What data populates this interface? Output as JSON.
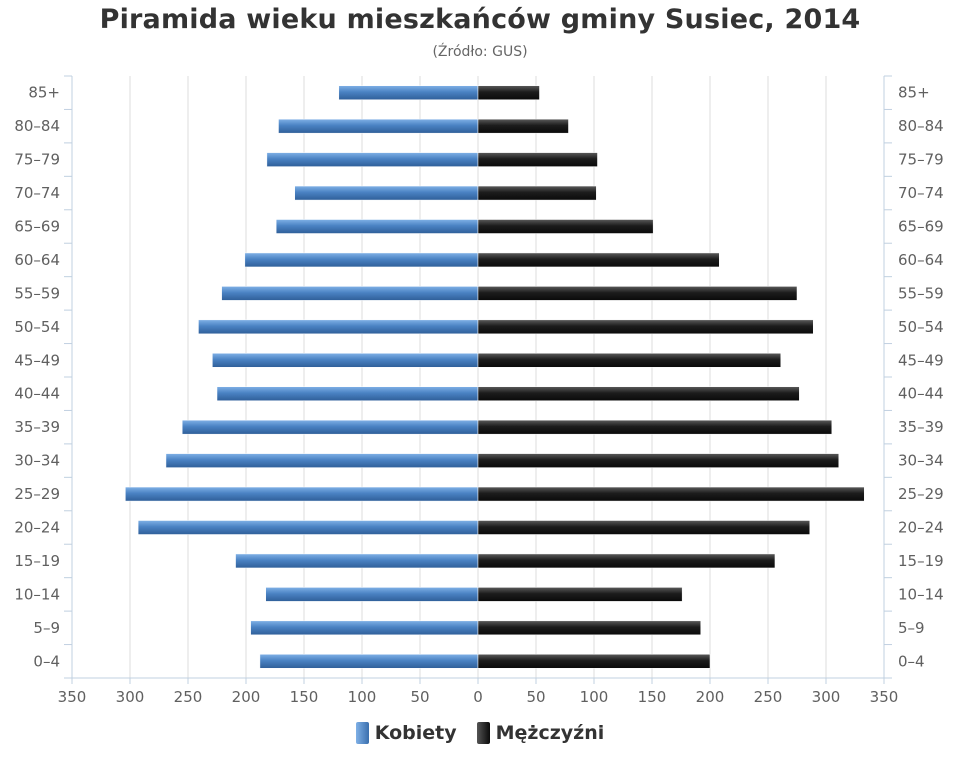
{
  "chart_data": {
    "type": "bar",
    "orientation": "horizontal-pyramid",
    "title": "Piramida wieku mieszkańców gminy Susiec, 2014",
    "subtitle": "(Źródło: GUS)",
    "categories": [
      "85+",
      "80–84",
      "75–79",
      "70–74",
      "65–69",
      "60–64",
      "55–59",
      "50–54",
      "45–49",
      "40–44",
      "35–39",
      "30–34",
      "25–29",
      "20–24",
      "15–19",
      "10–14",
      "5–9",
      "0–4"
    ],
    "series": [
      {
        "name": "Kobiety",
        "side": "left",
        "color": "#4a82c3",
        "values": [
          120,
          172,
          182,
          158,
          174,
          201,
          221,
          241,
          229,
          225,
          255,
          269,
          304,
          293,
          209,
          183,
          196,
          188
        ]
      },
      {
        "name": "Mężczyźni",
        "side": "right",
        "color": "#1c1c1c",
        "values": [
          53,
          78,
          103,
          102,
          151,
          208,
          275,
          289,
          261,
          277,
          305,
          311,
          333,
          286,
          256,
          176,
          192,
          200
        ]
      }
    ],
    "x_ticks": [
      "350",
      "300",
      "250",
      "200",
      "150",
      "100",
      "50",
      "0",
      "50",
      "100",
      "150",
      "200",
      "250",
      "300",
      "350"
    ],
    "xlim": [
      -350,
      350
    ],
    "grid": true,
    "legend_position": "bottom-center"
  }
}
